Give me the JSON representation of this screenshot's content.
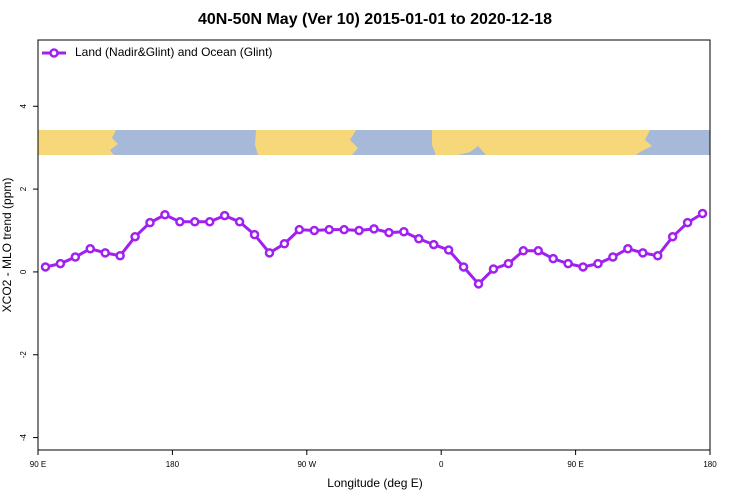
{
  "chart_data": {
    "type": "line",
    "title": "40N-50N May (Ver 10)   2015-01-01 to 2020-12-18",
    "x_label": "Longitude (deg E)",
    "y_label": "XCO2 - MLO trend (ppm)",
    "legend_position": "top-left",
    "x": [
      95,
      105,
      115,
      125,
      135,
      145,
      155,
      165,
      175,
      185,
      195,
      205,
      215,
      225,
      235,
      245,
      255,
      265,
      275,
      285,
      295,
      305,
      315,
      325,
      335,
      345,
      355,
      365,
      375,
      385,
      395,
      405,
      415,
      425,
      435,
      445,
      455,
      465,
      475,
      485,
      495,
      505,
      515,
      525,
      535
    ],
    "series": [
      {
        "name": "Land (Nadir&Glint) and Ocean (Glint)",
        "color": "#a020f0",
        "values": [
          0.12,
          0.2,
          0.36,
          0.56,
          0.46,
          0.39,
          0.85,
          1.19,
          1.38,
          1.21,
          1.21,
          1.21,
          1.36,
          1.21,
          0.9,
          0.46,
          0.68,
          1.02,
          1.0,
          1.02,
          1.02,
          1.0,
          1.04,
          0.95,
          0.97,
          0.8,
          0.66,
          0.53,
          0.12,
          -0.29,
          0.07,
          0.2,
          0.51,
          0.51,
          0.32,
          0.2,
          0.12,
          0.2,
          0.36,
          0.56,
          0.46,
          0.39,
          0.85,
          1.19,
          1.41
        ]
      }
    ],
    "xlim": [
      90,
      540
    ],
    "xticks": [
      {
        "value": 90,
        "label": "90 E"
      },
      180,
      {
        "value": 270,
        "label": "90 W"
      },
      {
        "value": 360,
        "label": "0"
      },
      {
        "value": 450,
        "label": "90 E"
      },
      {
        "value": 540,
        "label": "180"
      }
    ],
    "ylim": [
      -4.3,
      5.6
    ],
    "yticks": [
      -4,
      -2,
      0,
      2,
      4
    ]
  }
}
